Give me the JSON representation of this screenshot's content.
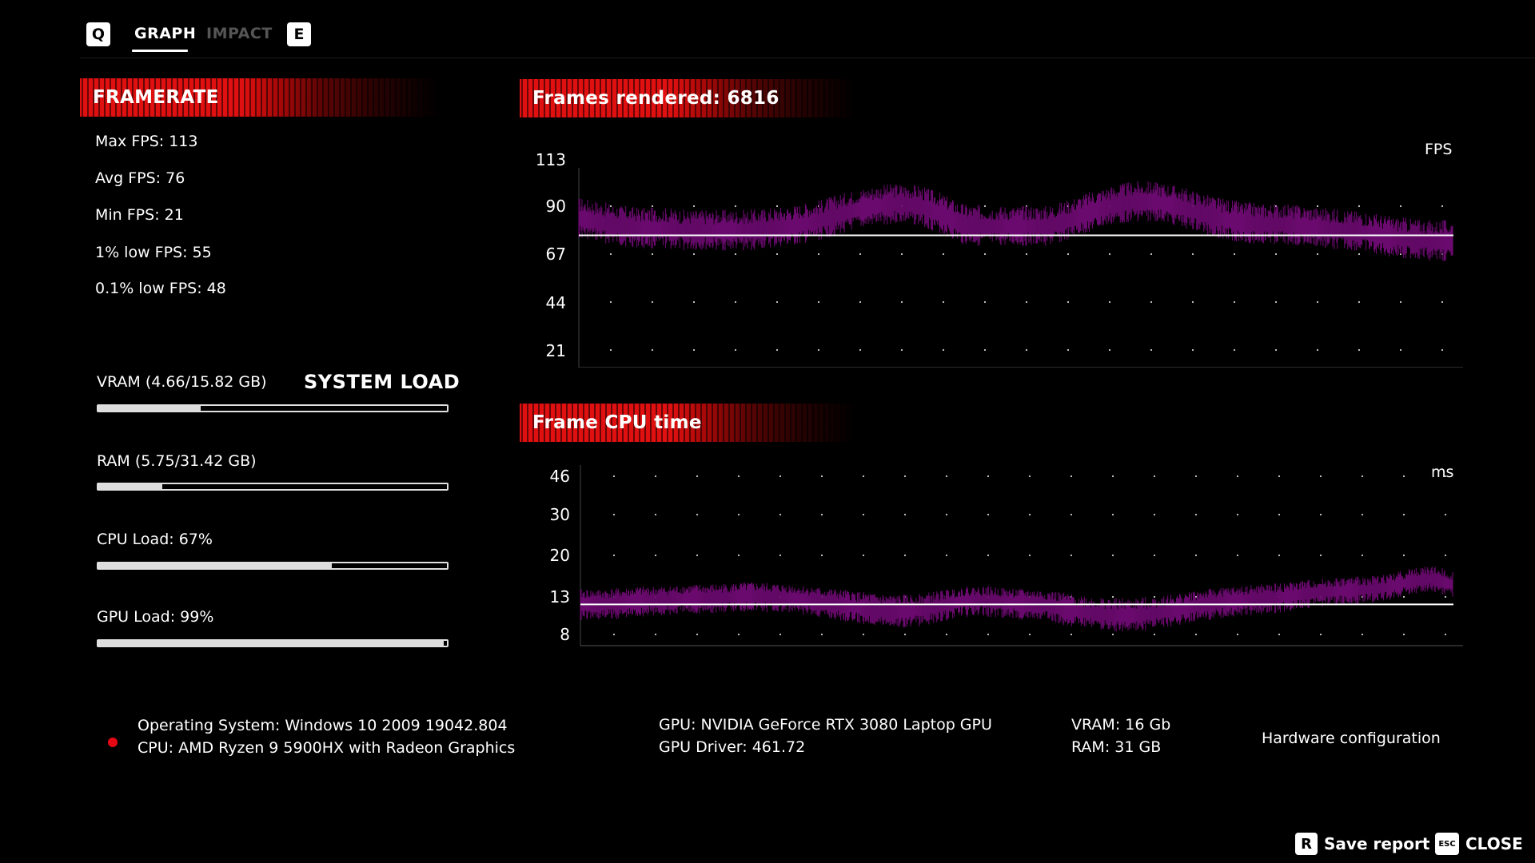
{
  "tabs": {
    "prev_key": "Q",
    "next_key": "E",
    "items": [
      {
        "label": "GRAPH",
        "active": true
      },
      {
        "label": "IMPACT",
        "active": false
      }
    ]
  },
  "framerate": {
    "title": "FRAMERATE",
    "stats": [
      "Max FPS: 113",
      "Avg FPS: 76",
      "Min FPS: 21",
      "1% low FPS: 55",
      "0.1% low FPS: 48"
    ]
  },
  "system_load": {
    "title": "SYSTEM LOAD",
    "items": [
      {
        "label": "VRAM (4.66/15.82 GB)",
        "fraction": 0.2946
      },
      {
        "label": "RAM (5.75/31.42 GB)",
        "fraction": 0.183
      },
      {
        "label": "CPU Load: 67%",
        "fraction": 0.67
      },
      {
        "label": "GPU Load: 99%",
        "fraction": 0.99
      }
    ]
  },
  "fps_chart": {
    "title": "Frames rendered: 6816",
    "unit": "FPS",
    "yticks": [
      "113",
      "90",
      "67",
      "44",
      "21"
    ]
  },
  "cpu_chart": {
    "title": "Frame CPU time",
    "unit": "ms",
    "yticks": [
      "46",
      "30",
      "20",
      "13",
      "8"
    ]
  },
  "hardware": {
    "os": "Operating System: Windows 10 2009 19042.804",
    "cpu": "CPU: AMD Ryzen 9 5900HX with Radeon Graphics",
    "gpu": "GPU: NVIDIA GeForce RTX 3080 Laptop GPU",
    "gpu_driver": "GPU Driver: 461.72",
    "vram": "VRAM: 16 Gb",
    "ram": "RAM: 31 GB",
    "title": "Hardware configuration"
  },
  "actions": {
    "save_key": "R",
    "save_label": "Save report",
    "close_key": "ESC",
    "close_label": "CLOSE"
  },
  "colors": {
    "accent_red": "#e01010",
    "series_purple": "#6a0a6e",
    "avg_line": "#ffffff",
    "status_dot": "#e50914"
  },
  "chart_data": [
    {
      "type": "line",
      "title": "Frames rendered: 6816",
      "ylabel": "FPS",
      "y_ticks": [
        113,
        90,
        67,
        44,
        21
      ],
      "ylim": [
        21,
        113
      ],
      "grid": "dotted",
      "avg_line": 76,
      "series": [
        {
          "values": [
            84,
            82,
            80,
            79,
            79,
            78,
            78,
            78,
            78,
            79,
            80,
            82,
            85,
            88,
            90,
            91,
            90,
            86,
            81,
            80,
            80,
            80,
            80,
            83,
            87,
            90,
            92,
            92,
            90,
            87,
            84,
            82,
            81,
            81,
            80,
            79,
            78,
            77,
            75,
            74,
            73,
            73
          ]
        }
      ]
    },
    {
      "type": "line",
      "title": "Frame CPU time",
      "ylabel": "ms",
      "y_ticks": [
        46,
        30,
        20,
        13,
        8
      ],
      "ylim": [
        8,
        46
      ],
      "grid": "dotted",
      "avg_line": 12,
      "series": [
        {
          "values": [
            12,
            12,
            12.2,
            12.5,
            12.5,
            12.8,
            12.8,
            13,
            13.2,
            13,
            12.8,
            12.4,
            12,
            11.6,
            11.2,
            11,
            11.2,
            11.8,
            12.4,
            12.5,
            12.2,
            12,
            11.8,
            11.2,
            10.8,
            10.5,
            10.5,
            10.8,
            11.2,
            11.8,
            12.2,
            12.5,
            12.8,
            13,
            13.5,
            13.8,
            14,
            14.2,
            14.6,
            15.5,
            16,
            15
          ]
        }
      ]
    }
  ]
}
